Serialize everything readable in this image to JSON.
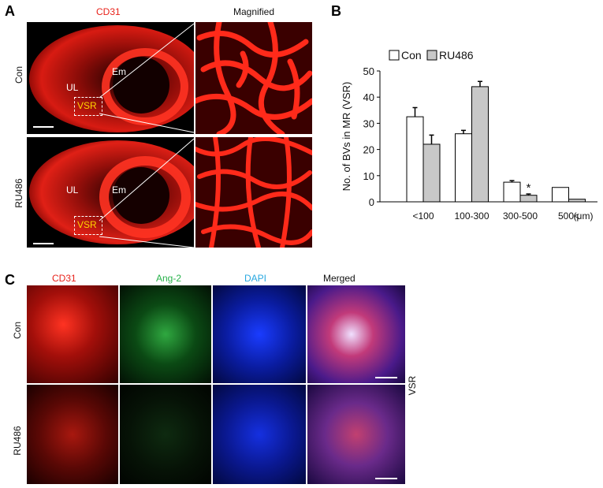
{
  "panels": {
    "a": {
      "letter": "A",
      "header_left": "CD31",
      "header_right": "Magnified",
      "row_labels": [
        "Con",
        "RU486"
      ],
      "region_labels": {
        "ul": "UL",
        "em": "Em",
        "vsr": "VSR"
      },
      "colors": {
        "cd31": "#e8221a",
        "vsr_text": "#ffd400",
        "background": "#000000"
      }
    },
    "b": {
      "letter": "B",
      "unit_label": "(μm)"
    },
    "c": {
      "letter": "C",
      "columns": [
        {
          "label": "CD31",
          "color": "#e8221a"
        },
        {
          "label": "Ang-2",
          "color": "#27b24a"
        },
        {
          "label": "DAPI",
          "color": "#29a8e0"
        },
        {
          "label": "Merged",
          "color": "#111111"
        }
      ],
      "row_labels": [
        "Con",
        "RU486"
      ],
      "side_label": "VSR"
    }
  },
  "chart_data": {
    "type": "bar",
    "title": "",
    "xlabel": "",
    "ylabel": "No. of BVs in  MR (VSR)",
    "categories": [
      "<100",
      "100-300",
      "300-500",
      "500<"
    ],
    "series": [
      {
        "name": "Con",
        "values": [
          32.5,
          26,
          7.5,
          5.5
        ],
        "errors": [
          3.5,
          1.3,
          0.6,
          0
        ],
        "fill": "#ffffff"
      },
      {
        "name": "RU486",
        "values": [
          22,
          44,
          2.5,
          1
        ],
        "errors": [
          3.5,
          2,
          0.5,
          0
        ],
        "fill": "#c8c8c8"
      }
    ],
    "ylim": [
      0,
      50
    ],
    "yticks": [
      0,
      10,
      20,
      30,
      40,
      50
    ],
    "legend": "top-left",
    "annotations": [
      {
        "text": "*",
        "category": "300-500",
        "series": "RU486"
      }
    ]
  }
}
